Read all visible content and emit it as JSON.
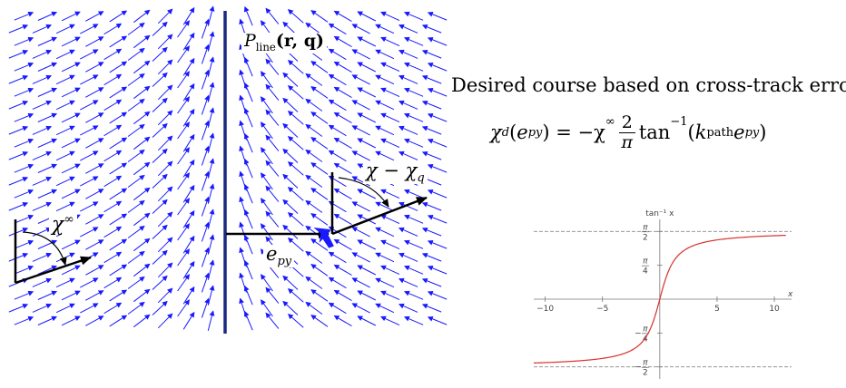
{
  "diagram": {
    "path_label": {
      "symbol": "P",
      "sub": "line",
      "args": "(r, q)"
    },
    "chi_inf_label": {
      "symbol": "χ",
      "sup": "∞"
    },
    "epy_label": {
      "symbol": "e",
      "sub": "py"
    },
    "course_error_label": {
      "text": "χ − χ",
      "sub": "q"
    }
  },
  "formula": {
    "heading": "Desired course based on cross-track error:",
    "lhs": "χ",
    "lhs_sub": "d",
    "lhs_arg_open": "(",
    "lhs_arg_sym": "e",
    "lhs_arg_sub": "py",
    "lhs_arg_close": ")",
    "equals": " = −χ",
    "chi_sup": "∞",
    "frac_num": "2",
    "frac_den": "π",
    "tan": "tan",
    "tan_sup": "−1",
    "paren_open": "(",
    "k": "k",
    "k_sub": "path",
    "e": "e",
    "e_sub": "py",
    "paren_close": ")"
  },
  "chart_data": {
    "type": "line",
    "title": "tan⁻¹ x",
    "xlabel": "x",
    "ylabel": "",
    "xlim": [
      -11,
      11.5
    ],
    "ylim": [
      -1.85,
      1.85
    ],
    "x_ticks": [
      -10,
      -5,
      5,
      10
    ],
    "y_tick_labels": [
      {
        "value": 1.5708,
        "num": "π",
        "den": "2",
        "sign": ""
      },
      {
        "value": 0.7854,
        "num": "π",
        "den": "4",
        "sign": ""
      },
      {
        "value": -0.7854,
        "num": "π",
        "den": "4",
        "sign": "−"
      },
      {
        "value": -1.5708,
        "num": "π",
        "den": "2",
        "sign": "−"
      }
    ],
    "asymptotes": [
      1.5708,
      -1.5708
    ],
    "series": [
      {
        "function": "arctan",
        "x_range": [
          -11,
          11
        ],
        "color": "#d9302c"
      }
    ]
  }
}
